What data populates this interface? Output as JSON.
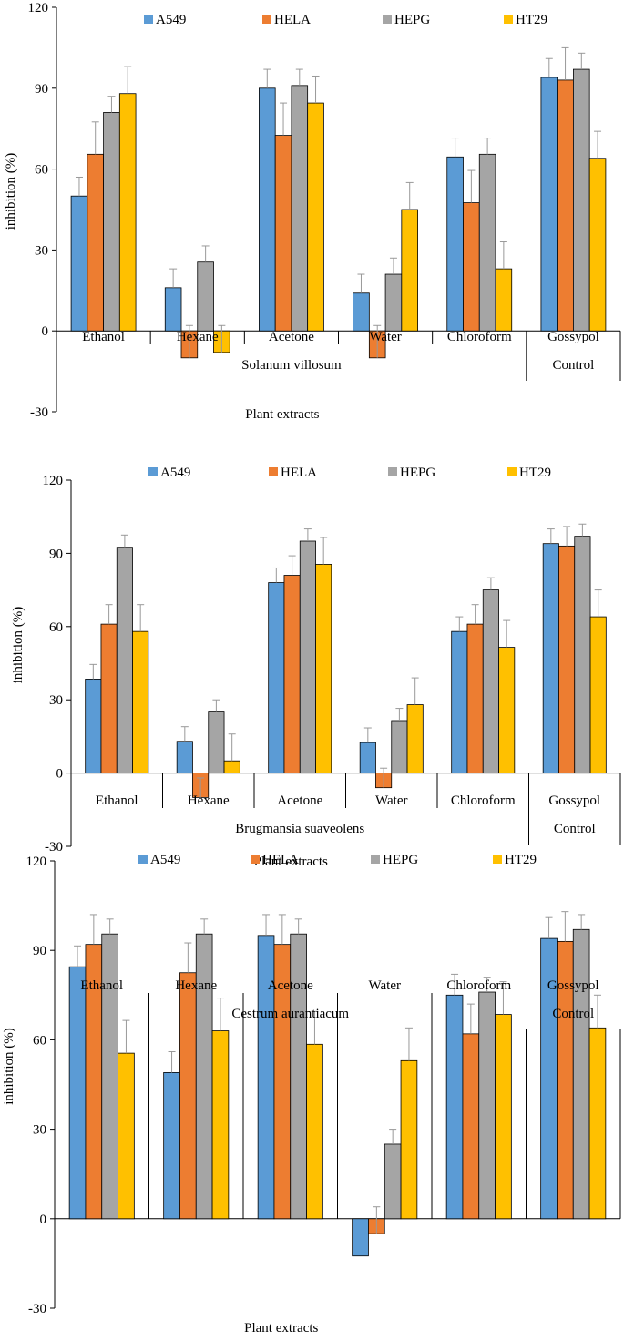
{
  "colors": {
    "A549": "#5B9BD5",
    "HELA": "#ED7D31",
    "HEPG": "#A5A5A5",
    "HT29": "#FFC000",
    "axis": "#000000",
    "error": "#999999"
  },
  "chart_data": [
    {
      "type": "bar",
      "title": "",
      "ylabel": "inhibition (%)",
      "xlabel": "Plant extracts",
      "ylim": [
        -30,
        120
      ],
      "yticks": [
        "-30",
        "0",
        "30",
        "60",
        "90",
        "120"
      ],
      "yticks_values": [
        -30,
        0,
        30,
        60,
        90,
        120
      ],
      "legend": "top",
      "categories": [
        "Ethanol",
        "Hexane",
        "Acetone",
        "Water",
        "Chloroform",
        "Gossypol"
      ],
      "group_labels": [
        {
          "label": "Solanum villosum",
          "span": [
            0,
            4
          ]
        },
        {
          "label": "Control",
          "span": [
            5,
            5
          ]
        }
      ],
      "series": [
        {
          "name": "A549",
          "values": [
            50,
            16,
            90,
            14,
            64.5,
            94
          ],
          "errors": [
            7,
            7,
            7,
            7,
            7,
            7
          ]
        },
        {
          "name": "HELA",
          "values": [
            65.5,
            -10,
            72.5,
            -10,
            47.5,
            93
          ],
          "errors": [
            12,
            12,
            12,
            12,
            12,
            12
          ]
        },
        {
          "name": "HEPG",
          "values": [
            81,
            25.5,
            91,
            21,
            65.5,
            97
          ],
          "errors": [
            6,
            6,
            6,
            6,
            6,
            6
          ]
        },
        {
          "name": "HT29",
          "values": [
            88,
            -8,
            84.5,
            45,
            23,
            64
          ],
          "errors": [
            10,
            10,
            10,
            10,
            10,
            10
          ]
        }
      ]
    },
    {
      "type": "bar",
      "title": "",
      "ylabel": "inhibition (%)",
      "xlabel": "Plant extracts",
      "ylim": [
        -30,
        120
      ],
      "yticks": [
        "-30",
        "0",
        "30",
        "60",
        "90",
        "120"
      ],
      "yticks_values": [
        -30,
        0,
        30,
        60,
        90,
        120
      ],
      "legend": "top",
      "categories": [
        "Ethanol",
        "Hexane",
        "Acetone",
        "Water",
        "Chloroform",
        "Gossypol"
      ],
      "group_labels": [
        {
          "label": "Brugmansia suaveolens",
          "span": [
            0,
            4
          ]
        },
        {
          "label": "Control",
          "span": [
            5,
            5
          ]
        }
      ],
      "series": [
        {
          "name": "A549",
          "values": [
            38.5,
            13,
            78,
            12.5,
            58,
            94
          ],
          "errors": [
            6,
            6,
            6,
            6,
            6,
            6
          ]
        },
        {
          "name": "HELA",
          "values": [
            61,
            -10,
            81,
            -6,
            61,
            93
          ],
          "errors": [
            8,
            8,
            8,
            8,
            8,
            8
          ]
        },
        {
          "name": "HEPG",
          "values": [
            92.5,
            25,
            95,
            21.5,
            75,
            97
          ],
          "errors": [
            5,
            5,
            5,
            5,
            5,
            5
          ]
        },
        {
          "name": "HT29",
          "values": [
            58,
            5,
            85.5,
            28,
            51.5,
            64
          ],
          "errors": [
            11,
            11,
            11,
            11,
            11,
            11
          ]
        }
      ]
    },
    {
      "type": "bar",
      "title": "",
      "ylabel": "inhibition (%)",
      "xlabel": "Plant extracts",
      "ylim": [
        -30,
        120
      ],
      "yticks": [
        "-30",
        "0",
        "30",
        "60",
        "90",
        "120"
      ],
      "yticks_values": [
        -30,
        0,
        30,
        60,
        90,
        120
      ],
      "legend": "top",
      "categories": [
        "Ethanol",
        "Hexane",
        "Acetone",
        "Water",
        "Chloroform",
        "Gossypol"
      ],
      "group_labels": [
        {
          "label": "Cestrum aurantiacum",
          "span": [
            0,
            4
          ]
        },
        {
          "label": "Control",
          "span": [
            5,
            5
          ]
        }
      ],
      "series": [
        {
          "name": "A549",
          "values": [
            84.5,
            49,
            95,
            -12.5,
            75,
            94
          ],
          "errors": [
            7,
            7,
            7,
            0,
            7,
            7
          ]
        },
        {
          "name": "HELA",
          "values": [
            92,
            82.5,
            92,
            -5,
            62,
            93
          ],
          "errors": [
            10,
            10,
            10,
            9,
            10,
            10
          ]
        },
        {
          "name": "HEPG",
          "values": [
            95.5,
            95.5,
            95.5,
            25,
            76,
            97
          ],
          "errors": [
            5,
            5,
            5,
            5,
            5,
            5
          ]
        },
        {
          "name": "HT29",
          "values": [
            55.5,
            63,
            58.5,
            53,
            68.5,
            64
          ],
          "errors": [
            11,
            11,
            11,
            11,
            11,
            11
          ]
        }
      ]
    }
  ]
}
